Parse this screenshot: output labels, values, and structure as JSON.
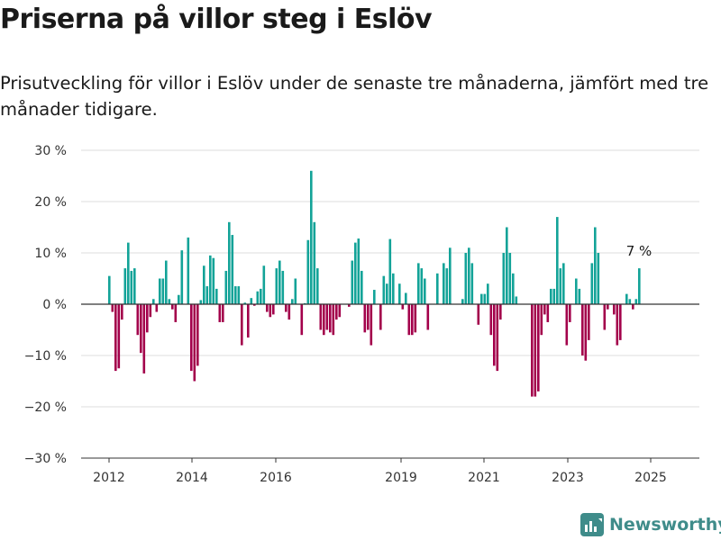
{
  "title": "Priserna på villor steg i Eslöv",
  "subtitle": "Prisutveckling för villor i Eslöv under de senaste tre månaderna, jämfört med tre månader tidigare.",
  "brand": "Newsworthy",
  "colors": {
    "positive": "#13a398",
    "negative": "#a3004b",
    "grid": "#dddddd",
    "zero_line": "#333333",
    "brand": "#3f8c8a"
  },
  "chart_data": {
    "type": "bar",
    "title": "Priserna på villor steg i Eslöv",
    "subtitle": "Prisutveckling för villor i Eslöv under de senaste tre månaderna, jämfört med tre månader tidigare.",
    "xlabel": "",
    "ylabel": "",
    "ylim": [
      -30,
      30
    ],
    "yticks": [
      -30,
      -20,
      -10,
      0,
      10,
      20,
      30
    ],
    "ytick_labels": [
      "−30 %",
      "−20 %",
      "−10 %",
      "0 %",
      "10 %",
      "20 %",
      "30 %"
    ],
    "xticks": [
      "2012",
      "2014",
      "2016",
      "2019",
      "2021",
      "2023",
      "2025"
    ],
    "grid": "horizontal",
    "annotation": {
      "text": "7 %",
      "value": 7
    },
    "series": [
      {
        "values": [
          5.5,
          -1.5,
          -13,
          -12.5,
          -3,
          7,
          12,
          6.5,
          7,
          -6,
          -9.5,
          -13.5,
          -5.5,
          -2.5,
          1,
          -1.5,
          5,
          5,
          8.5,
          1,
          -1,
          -3.5,
          1.8,
          10.5,
          0,
          13,
          -13,
          -15,
          -12,
          0.8,
          7.5,
          3.5,
          9.5,
          9,
          3,
          -3.5,
          -3.5,
          6.5,
          16,
          13.5,
          3.5,
          3.5,
          -8,
          0.3,
          -6.5,
          1.2,
          -0.3,
          2.5,
          3,
          7.5,
          -1.5,
          -2.5,
          -2,
          7,
          8.5,
          6.5,
          -1.5,
          -3,
          1,
          5,
          0,
          -6,
          0.2,
          12.5,
          26,
          16,
          7,
          -5,
          -6,
          -5,
          -5.5,
          -6,
          -3,
          -2.5,
          0,
          0,
          -0.5,
          8.5,
          12,
          12.8,
          6.5,
          -5.5,
          -5,
          -8,
          2.8,
          0,
          -5,
          5.5,
          4,
          12.7,
          6,
          0,
          4,
          -1,
          2.2,
          -6,
          -6,
          -5.5,
          8,
          7,
          5,
          -5,
          0,
          0,
          6,
          0,
          8,
          7,
          11,
          0,
          0,
          0,
          1,
          10,
          11,
          8,
          0,
          -4,
          2,
          2,
          4,
          -6,
          -12,
          -13,
          -3,
          10,
          15,
          10,
          6,
          1.5,
          0,
          0,
          0,
          0,
          -18,
          -18,
          -17,
          -6,
          -2,
          -3.5,
          3,
          3,
          17,
          7,
          8,
          -8,
          -3.5,
          0,
          5,
          3,
          -10,
          -11,
          -7,
          8,
          15,
          10,
          0,
          -5,
          -1,
          0,
          -2,
          -8,
          -7,
          0,
          2,
          1,
          -1,
          1,
          7
        ]
      }
    ]
  }
}
